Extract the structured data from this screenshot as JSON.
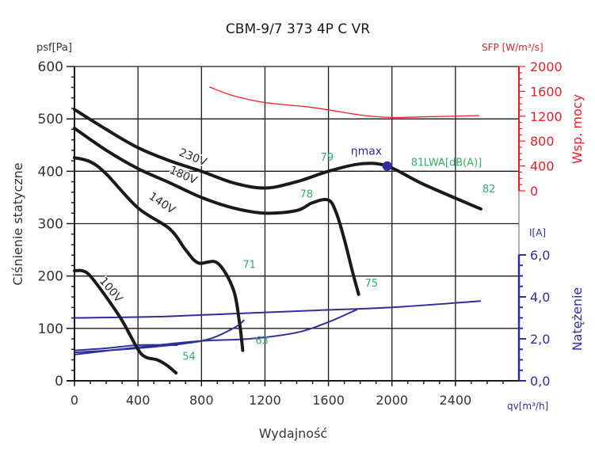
{
  "chart_data": {
    "type": "line",
    "title": "CBM-9/7 373 4P C VR",
    "xlabel": "Wydajność",
    "xunit": "qv[m³/h]",
    "ylabel": "Ciśnienie statyczne",
    "yunit": "psf[Pa]",
    "y2label": "Wsp. mocy",
    "y2unit": "SFP [W/m³/s]",
    "y3label": "Natężenie",
    "y3unit": "I[A]",
    "xlim": [
      0,
      2800
    ],
    "ylim": [
      0,
      600
    ],
    "y2lim": [
      0,
      2000
    ],
    "y3lim": [
      0,
      6.0
    ],
    "grid": true,
    "xticks": [
      "0",
      "400",
      "800",
      "1200",
      "1600",
      "2000",
      "2400"
    ],
    "yticks": [
      "0",
      "100",
      "200",
      "300",
      "400",
      "500",
      "600"
    ],
    "y2ticks": [
      "0",
      "400",
      "800",
      "1200",
      "1600",
      "2000"
    ],
    "y3ticks": [
      "0,0",
      "2,0",
      "4,0",
      "6,0"
    ],
    "pressure_series": [
      {
        "name": "230V",
        "x": [
          0,
          200,
          400,
          600,
          800,
          1000,
          1200,
          1400,
          1600,
          1800,
          1970,
          2200,
          2560
        ],
        "y": [
          518,
          480,
          445,
          420,
          400,
          378,
          368,
          380,
          400,
          414,
          410,
          375,
          328
        ]
      },
      {
        "name": "180V",
        "x": [
          0,
          200,
          400,
          600,
          800,
          1000,
          1200,
          1400,
          1500,
          1600,
          1650,
          1700,
          1750,
          1790
        ],
        "y": [
          482,
          440,
          405,
          378,
          350,
          330,
          320,
          325,
          340,
          345,
          320,
          270,
          210,
          165
        ]
      },
      {
        "name": "140V",
        "x": [
          0,
          100,
          200,
          400,
          600,
          700,
          780,
          900,
          1000,
          1040,
          1060
        ],
        "y": [
          426,
          418,
          395,
          330,
          290,
          250,
          225,
          225,
          175,
          110,
          58
        ]
      },
      {
        "name": "100V",
        "x": [
          0,
          50,
          100,
          200,
          300,
          400,
          450,
          520,
          580,
          640
        ],
        "y": [
          210,
          210,
          200,
          160,
          115,
          60,
          45,
          40,
          30,
          15
        ]
      }
    ],
    "sfp_series": {
      "name": "SFP",
      "x": [
        850,
        1000,
        1200,
        1500,
        1800,
        2000,
        2200,
        2550
      ],
      "y": [
        1670,
        1530,
        1420,
        1340,
        1220,
        1180,
        1190,
        1210
      ]
    },
    "current_series": [
      {
        "name": "230V",
        "x": [
          0,
          500,
          1000,
          1500,
          2000,
          2560
        ],
        "y": [
          3.0,
          3.05,
          3.2,
          3.35,
          3.5,
          3.8
        ]
      },
      {
        "name": "180V",
        "x": [
          0,
          400,
          800,
          1100,
          1400,
          1600,
          1780
        ],
        "y": [
          1.25,
          1.6,
          1.9,
          2.0,
          2.3,
          2.8,
          3.4
        ]
      },
      {
        "name": "140V",
        "x": [
          0,
          400,
          800,
          1000,
          1070
        ],
        "y": [
          1.35,
          1.55,
          1.9,
          2.5,
          2.9
        ]
      },
      {
        "name": "100V",
        "x": [
          0,
          200,
          400,
          650
        ],
        "y": [
          1.45,
          1.55,
          1.7,
          1.7
        ]
      }
    ],
    "annotations": [
      {
        "text": "79",
        "x": 1550,
        "y": 420
      },
      {
        "text": "81",
        "x": 2120,
        "y": 410
      },
      {
        "text": "LWA[dB(A)]",
        "x": 2200,
        "y": 410
      },
      {
        "text": "82",
        "x": 2570,
        "y": 360
      },
      {
        "text": "78",
        "x": 1420,
        "y": 350
      },
      {
        "text": "75",
        "x": 1830,
        "y": 180
      },
      {
        "text": "71",
        "x": 1060,
        "y": 215
      },
      {
        "text": "63",
        "x": 1140,
        "y": 70
      },
      {
        "text": "54",
        "x": 680,
        "y": 40
      }
    ],
    "eta_max": {
      "label": "ηmax",
      "x": 1970,
      "y": 410
    },
    "voltage_labels": [
      "230V",
      "180V",
      "140V",
      "100V"
    ],
    "colors": {
      "pressure": "#1a1a1a",
      "sfp": "#e8202a",
      "current": "#2e2f9a",
      "noise": "#3aaa6a",
      "grid": "#1a1a1a"
    }
  }
}
